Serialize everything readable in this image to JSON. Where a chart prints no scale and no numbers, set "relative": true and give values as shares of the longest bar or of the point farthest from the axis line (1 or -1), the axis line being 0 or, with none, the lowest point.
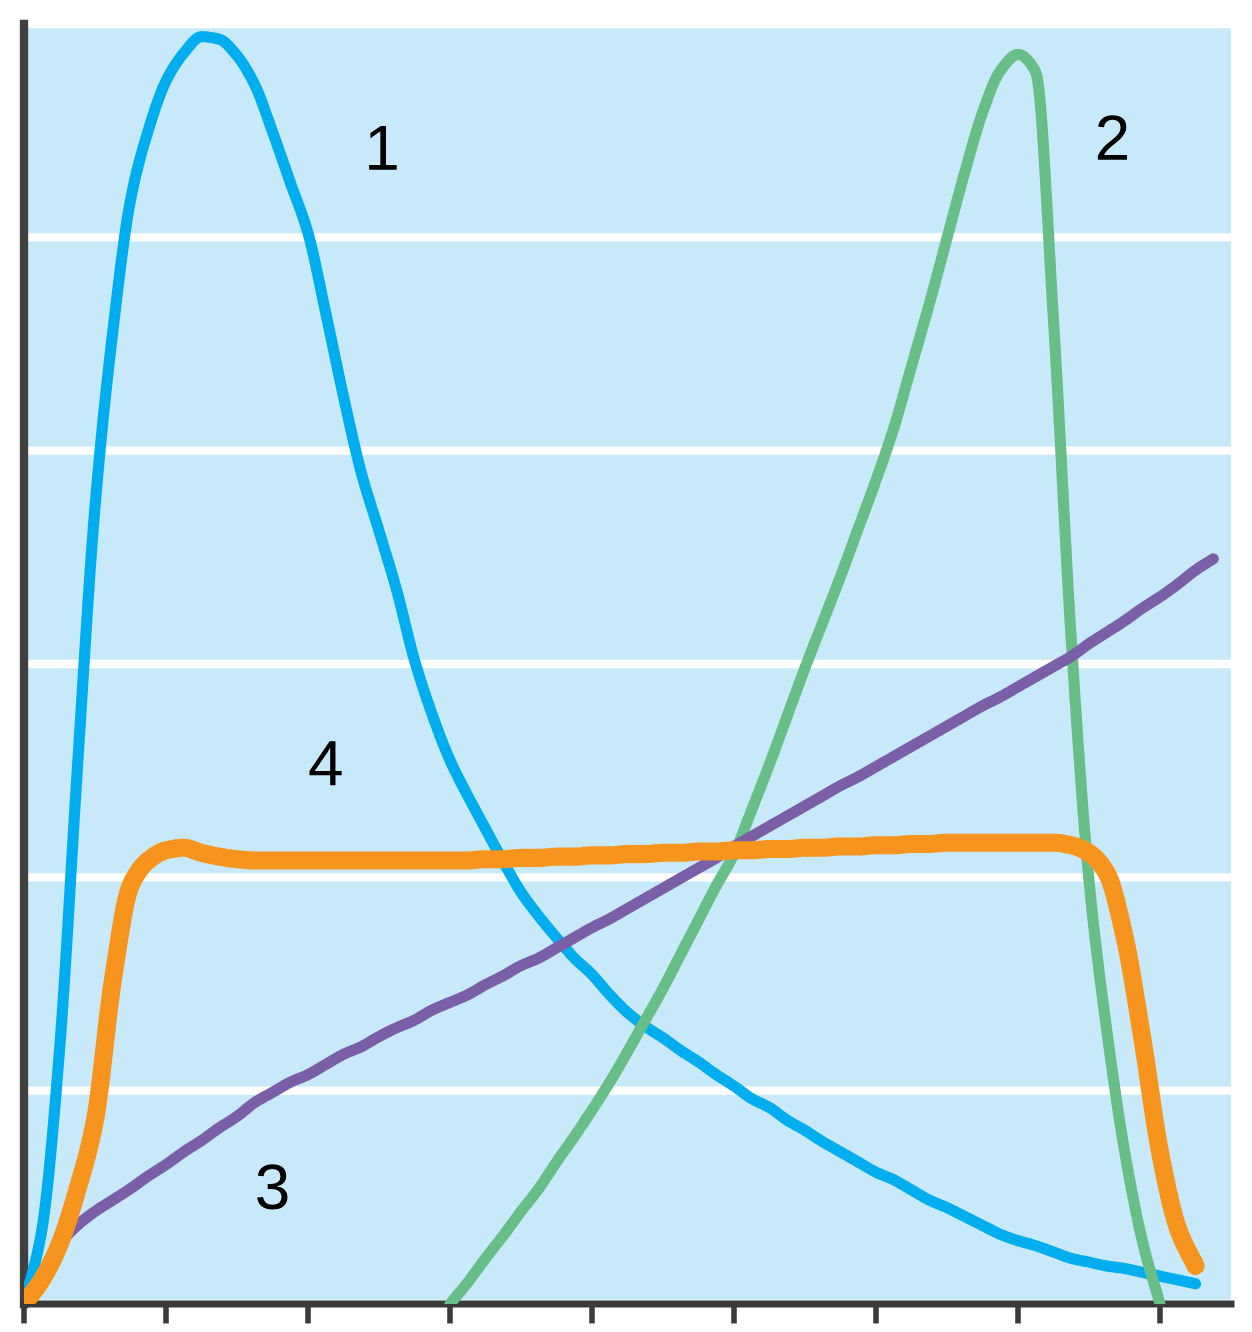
{
  "chart_data": {
    "type": "line",
    "relative": true,
    "grid": "y",
    "categories": [
      null,
      null,
      null,
      null,
      null,
      null,
      null,
      null,
      null,
      null,
      null,
      null,
      null,
      null,
      null,
      null,
      null,
      null,
      null,
      null,
      null,
      null,
      null,
      null,
      null,
      null,
      null,
      null,
      null,
      null,
      null,
      null,
      null,
      null,
      null,
      null,
      null,
      null,
      null,
      null,
      null,
      null,
      null,
      null,
      null,
      null,
      null,
      null,
      null,
      null,
      null,
      null,
      null,
      null,
      null,
      null,
      null,
      null,
      null,
      null,
      null,
      null,
      null,
      null,
      null,
      null,
      null,
      null,
      null
    ],
    "series": [
      {
        "name": "1",
        "color": "#00aeef",
        "values": [
          0,
          0.058,
          0.2,
          0.421,
          0.629,
          0.767,
          0.871,
          0.926,
          0.965,
          0.987,
          1,
          0.998,
          0.985,
          0.962,
          0.925,
          0.885,
          0.845,
          0.782,
          0.716,
          0.656,
          0.61,
          0.563,
          0.508,
          0.465,
          0.429,
          0.401,
          0.375,
          0.349,
          0.325,
          0.306,
          0.289,
          0.273,
          0.26,
          0.244,
          0.23,
          0.219,
          0.21,
          0.2,
          0.191,
          0.181,
          0.172,
          0.162,
          0.155,
          0.145,
          0.137,
          0.128,
          0.12,
          0.112,
          0.104,
          0.098,
          0.09,
          0.082,
          0.076,
          0.069,
          0.062,
          0.055,
          0.05,
          0.046,
          0.041,
          0.036,
          0.033,
          0.03,
          0.028,
          0.025,
          0.022,
          0.019,
          0.016,
          null,
          null
        ]
      },
      {
        "name": "2",
        "color": "#67be87",
        "values": [
          null,
          null,
          null,
          null,
          null,
          null,
          null,
          null,
          null,
          null,
          null,
          null,
          null,
          null,
          null,
          null,
          null,
          null,
          null,
          null,
          null,
          null,
          null,
          null,
          0,
          0.017,
          0.036,
          0.054,
          0.073,
          0.091,
          0.112,
          0.132,
          0.153,
          0.175,
          0.199,
          0.224,
          0.249,
          0.276,
          0.303,
          0.33,
          0.355,
          0.39,
          0.426,
          0.464,
          0.502,
          0.538,
          0.574,
          0.612,
          0.65,
          0.691,
          0.74,
          0.789,
          0.841,
          0.893,
          0.94,
          0.973,
          0.986,
          0.972,
          0.776,
          0.524,
          0.334,
          0.216,
          0.121,
          0.05,
          0,
          null,
          null,
          null,
          null
        ]
      },
      {
        "name": "3",
        "color": "#7a5fa8",
        "values": [
          0,
          0.022,
          0.047,
          0.062,
          0.073,
          0.082,
          0.091,
          0.101,
          0.11,
          0.12,
          0.129,
          0.139,
          0.148,
          0.159,
          0.167,
          0.175,
          0.181,
          0.189,
          0.197,
          0.203,
          0.211,
          0.218,
          0.224,
          0.232,
          0.238,
          0.244,
          0.252,
          0.259,
          0.267,
          0.273,
          0.281,
          0.289,
          0.297,
          0.304,
          0.312,
          0.32,
          0.328,
          0.336,
          0.344,
          0.352,
          0.361,
          0.369,
          0.377,
          0.385,
          0.393,
          0.401,
          0.409,
          0.416,
          0.424,
          0.432,
          0.44,
          0.448,
          0.456,
          0.464,
          0.472,
          0.479,
          0.487,
          0.495,
          0.503,
          0.511,
          0.521,
          0.53,
          0.539,
          0.549,
          0.558,
          0.568,
          0.579,
          0.588,
          null
        ]
      },
      {
        "name": "4",
        "color": "#f7941d",
        "values": [
          0,
          0.019,
          0.047,
          0.09,
          0.145,
          0.255,
          0.33,
          0.35,
          0.358,
          0.36,
          0.356,
          0.353,
          0.351,
          0.35,
          0.35,
          0.35,
          0.35,
          0.35,
          0.35,
          0.35,
          0.35,
          0.35,
          0.35,
          0.35,
          0.35,
          0.35,
          0.351,
          0.351,
          0.352,
          0.352,
          0.353,
          0.353,
          0.354,
          0.354,
          0.355,
          0.355,
          0.356,
          0.356,
          0.357,
          0.357,
          0.358,
          0.358,
          0.359,
          0.359,
          0.36,
          0.36,
          0.361,
          0.361,
          0.362,
          0.362,
          0.363,
          0.363,
          0.364,
          0.364,
          0.364,
          0.364,
          0.364,
          0.364,
          0.364,
          0.362,
          0.356,
          0.34,
          0.29,
          0.21,
          0.12,
          0.06,
          0.03,
          null,
          null
        ]
      }
    ]
  }
}
